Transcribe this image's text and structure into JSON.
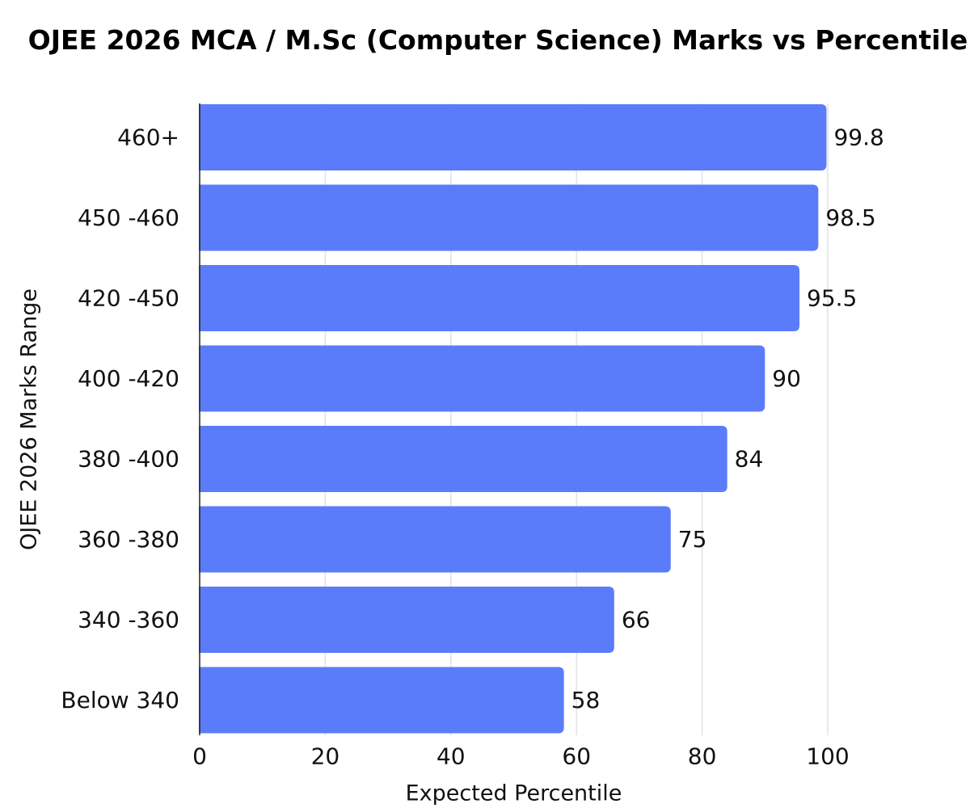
{
  "chart_data": {
    "type": "bar",
    "orientation": "horizontal",
    "title": "OJEE 2026 MCA / M.Sc (Computer Science) Marks vs Percentile",
    "xlabel": "Expected Percentile",
    "ylabel": "OJEE 2026 Marks Range",
    "categories": [
      "460+",
      "450 -460",
      "420 -450",
      "400 -420",
      "380 -400",
      "360 -380",
      "340 -360",
      "Below 340"
    ],
    "values": [
      99.8,
      98.5,
      95.5,
      90,
      84,
      75,
      66,
      58
    ],
    "value_labels": [
      "99.8",
      "98.5",
      "95.5",
      "90",
      "84",
      "75",
      "66",
      "58"
    ],
    "xlim": [
      0,
      100
    ],
    "xticks": [
      0,
      20,
      40,
      60,
      80,
      100
    ],
    "grid": true,
    "bar_color": "#5b7cfa"
  }
}
